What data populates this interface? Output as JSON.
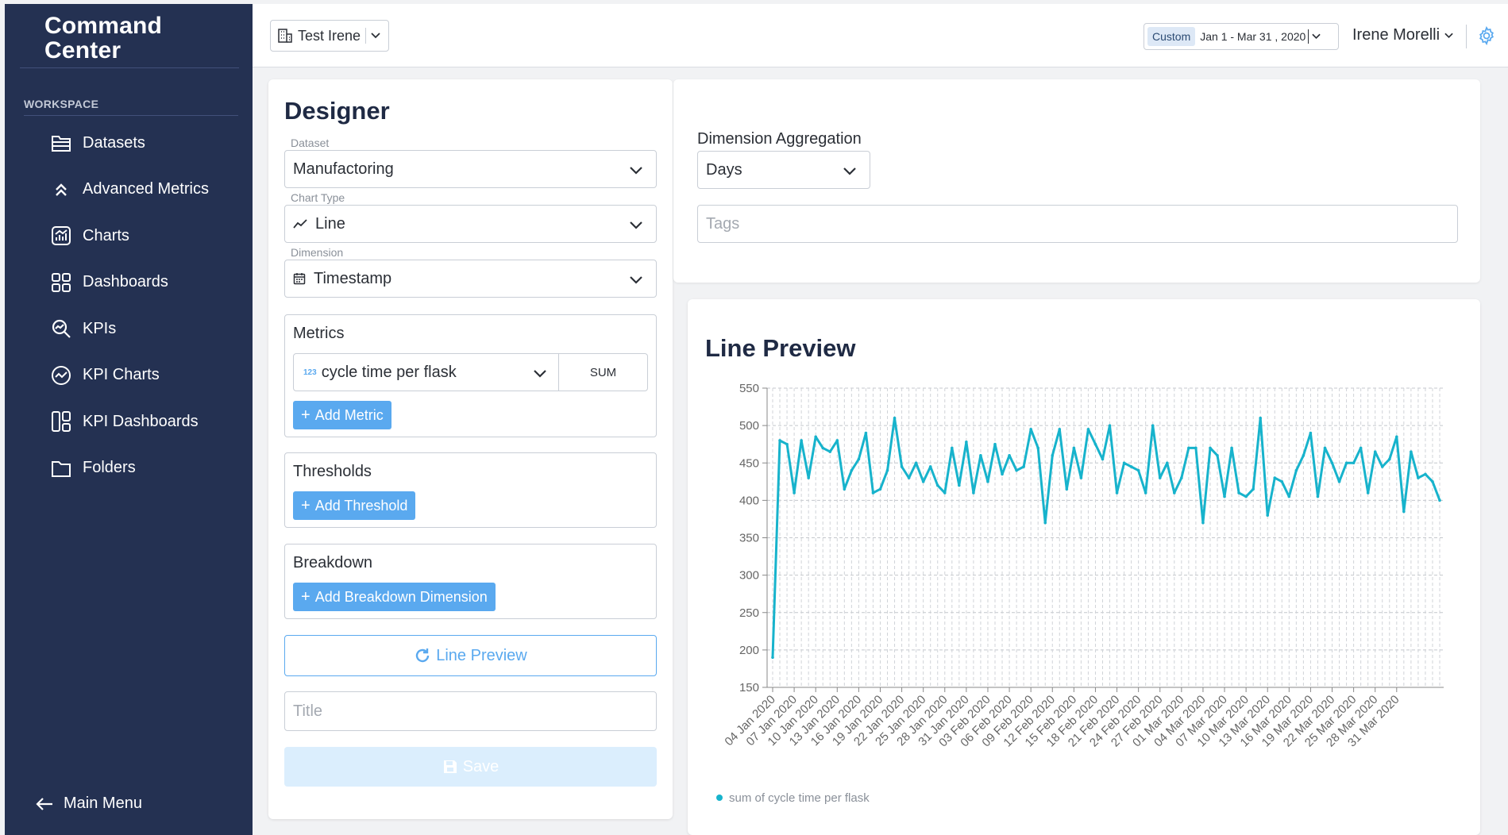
{
  "sidebar": {
    "brand_line1": "Command",
    "brand_line2": "Center",
    "section": "WORKSPACE",
    "items": [
      {
        "label": "Datasets",
        "icon": "folder-file-icon"
      },
      {
        "label": "Advanced Metrics",
        "icon": "double-chevron-up-icon"
      },
      {
        "label": "Charts",
        "icon": "chart-icon"
      },
      {
        "label": "Dashboards",
        "icon": "dashboard-icon"
      },
      {
        "label": "KPIs",
        "icon": "kpi-search-icon"
      },
      {
        "label": "KPI Charts",
        "icon": "kpi-chart-icon"
      },
      {
        "label": "KPI Dashboards",
        "icon": "kpi-dashboard-icon"
      },
      {
        "label": "Folders",
        "icon": "folder-icon"
      }
    ],
    "main_menu": "Main Menu"
  },
  "topbar": {
    "org": "Test Irene",
    "date_tag": "Custom",
    "date_range": "Jan 1 - Mar 31 , 2020",
    "user": "Irene Morelli"
  },
  "designer": {
    "title": "Designer",
    "dataset_label": "Dataset",
    "dataset_value": "Manufactoring",
    "chart_type_label": "Chart Type",
    "chart_type_value": "Line",
    "dimension_label": "Dimension",
    "dimension_value": "Timestamp",
    "metrics_title": "Metrics",
    "metric_name": "cycle time per flask",
    "metric_type_badge": "123",
    "metric_agg": "SUM",
    "add_metric": "Add Metric",
    "thresholds_title": "Thresholds",
    "add_threshold": "Add Threshold",
    "breakdown_title": "Breakdown",
    "add_breakdown": "Add Breakdown Dimension",
    "preview_button": "Line Preview",
    "title_placeholder": "Title",
    "save_button": "Save"
  },
  "settings": {
    "dimension_aggregation_label": "Dimension Aggregation",
    "dimension_aggregation_value": "Days",
    "tags_placeholder": "Tags"
  },
  "colors": {
    "sidebar": "#243152",
    "accent": "#5aa9ef",
    "series": "#17b3cc"
  },
  "chart_data": {
    "type": "line",
    "title": "Line Preview",
    "ylim": [
      150,
      550
    ],
    "yticks": [
      150,
      200,
      250,
      300,
      350,
      400,
      450,
      500,
      550
    ],
    "xticklabels": [
      "04 Jan 2020",
      "07 Jan 2020",
      "10 Jan 2020",
      "13 Jan 2020",
      "16 Jan 2020",
      "19 Jan 2020",
      "22 Jan 2020",
      "25 Jan 2020",
      "28 Jan 2020",
      "31 Jan 2020",
      "03 Feb 2020",
      "06 Feb 2020",
      "09 Feb 2020",
      "12 Feb 2020",
      "15 Feb 2020",
      "18 Feb 2020",
      "21 Feb 2020",
      "24 Feb 2020",
      "27 Feb 2020",
      "01 Mar 2020",
      "04 Mar 2020",
      "07 Mar 2020",
      "10 Mar 2020",
      "13 Mar 2020",
      "16 Mar 2020",
      "19 Mar 2020",
      "22 Mar 2020",
      "25 Mar 2020",
      "28 Mar 2020",
      "31 Mar 2020"
    ],
    "grid": true,
    "legend_position": "bottom-left",
    "series": [
      {
        "name": "sum of cycle time per flask",
        "x_start": "04 Jan 2020",
        "values": [
          190,
          480,
          475,
          410,
          480,
          430,
          485,
          470,
          465,
          480,
          415,
          440,
          455,
          490,
          410,
          415,
          440,
          510,
          445,
          430,
          450,
          425,
          445,
          420,
          410,
          470,
          420,
          478,
          410,
          460,
          425,
          475,
          435,
          460,
          440,
          445,
          495,
          470,
          370,
          460,
          495,
          415,
          470,
          430,
          495,
          475,
          455,
          500,
          410,
          450,
          445,
          440,
          410,
          500,
          430,
          450,
          410,
          430,
          470,
          470,
          370,
          470,
          460,
          405,
          470,
          410,
          405,
          415,
          510,
          380,
          430,
          425,
          405,
          440,
          460,
          490,
          405,
          470,
          450,
          425,
          450,
          450,
          470,
          410,
          465,
          445,
          455,
          485,
          385,
          465,
          430,
          435,
          425,
          400
        ]
      }
    ]
  }
}
